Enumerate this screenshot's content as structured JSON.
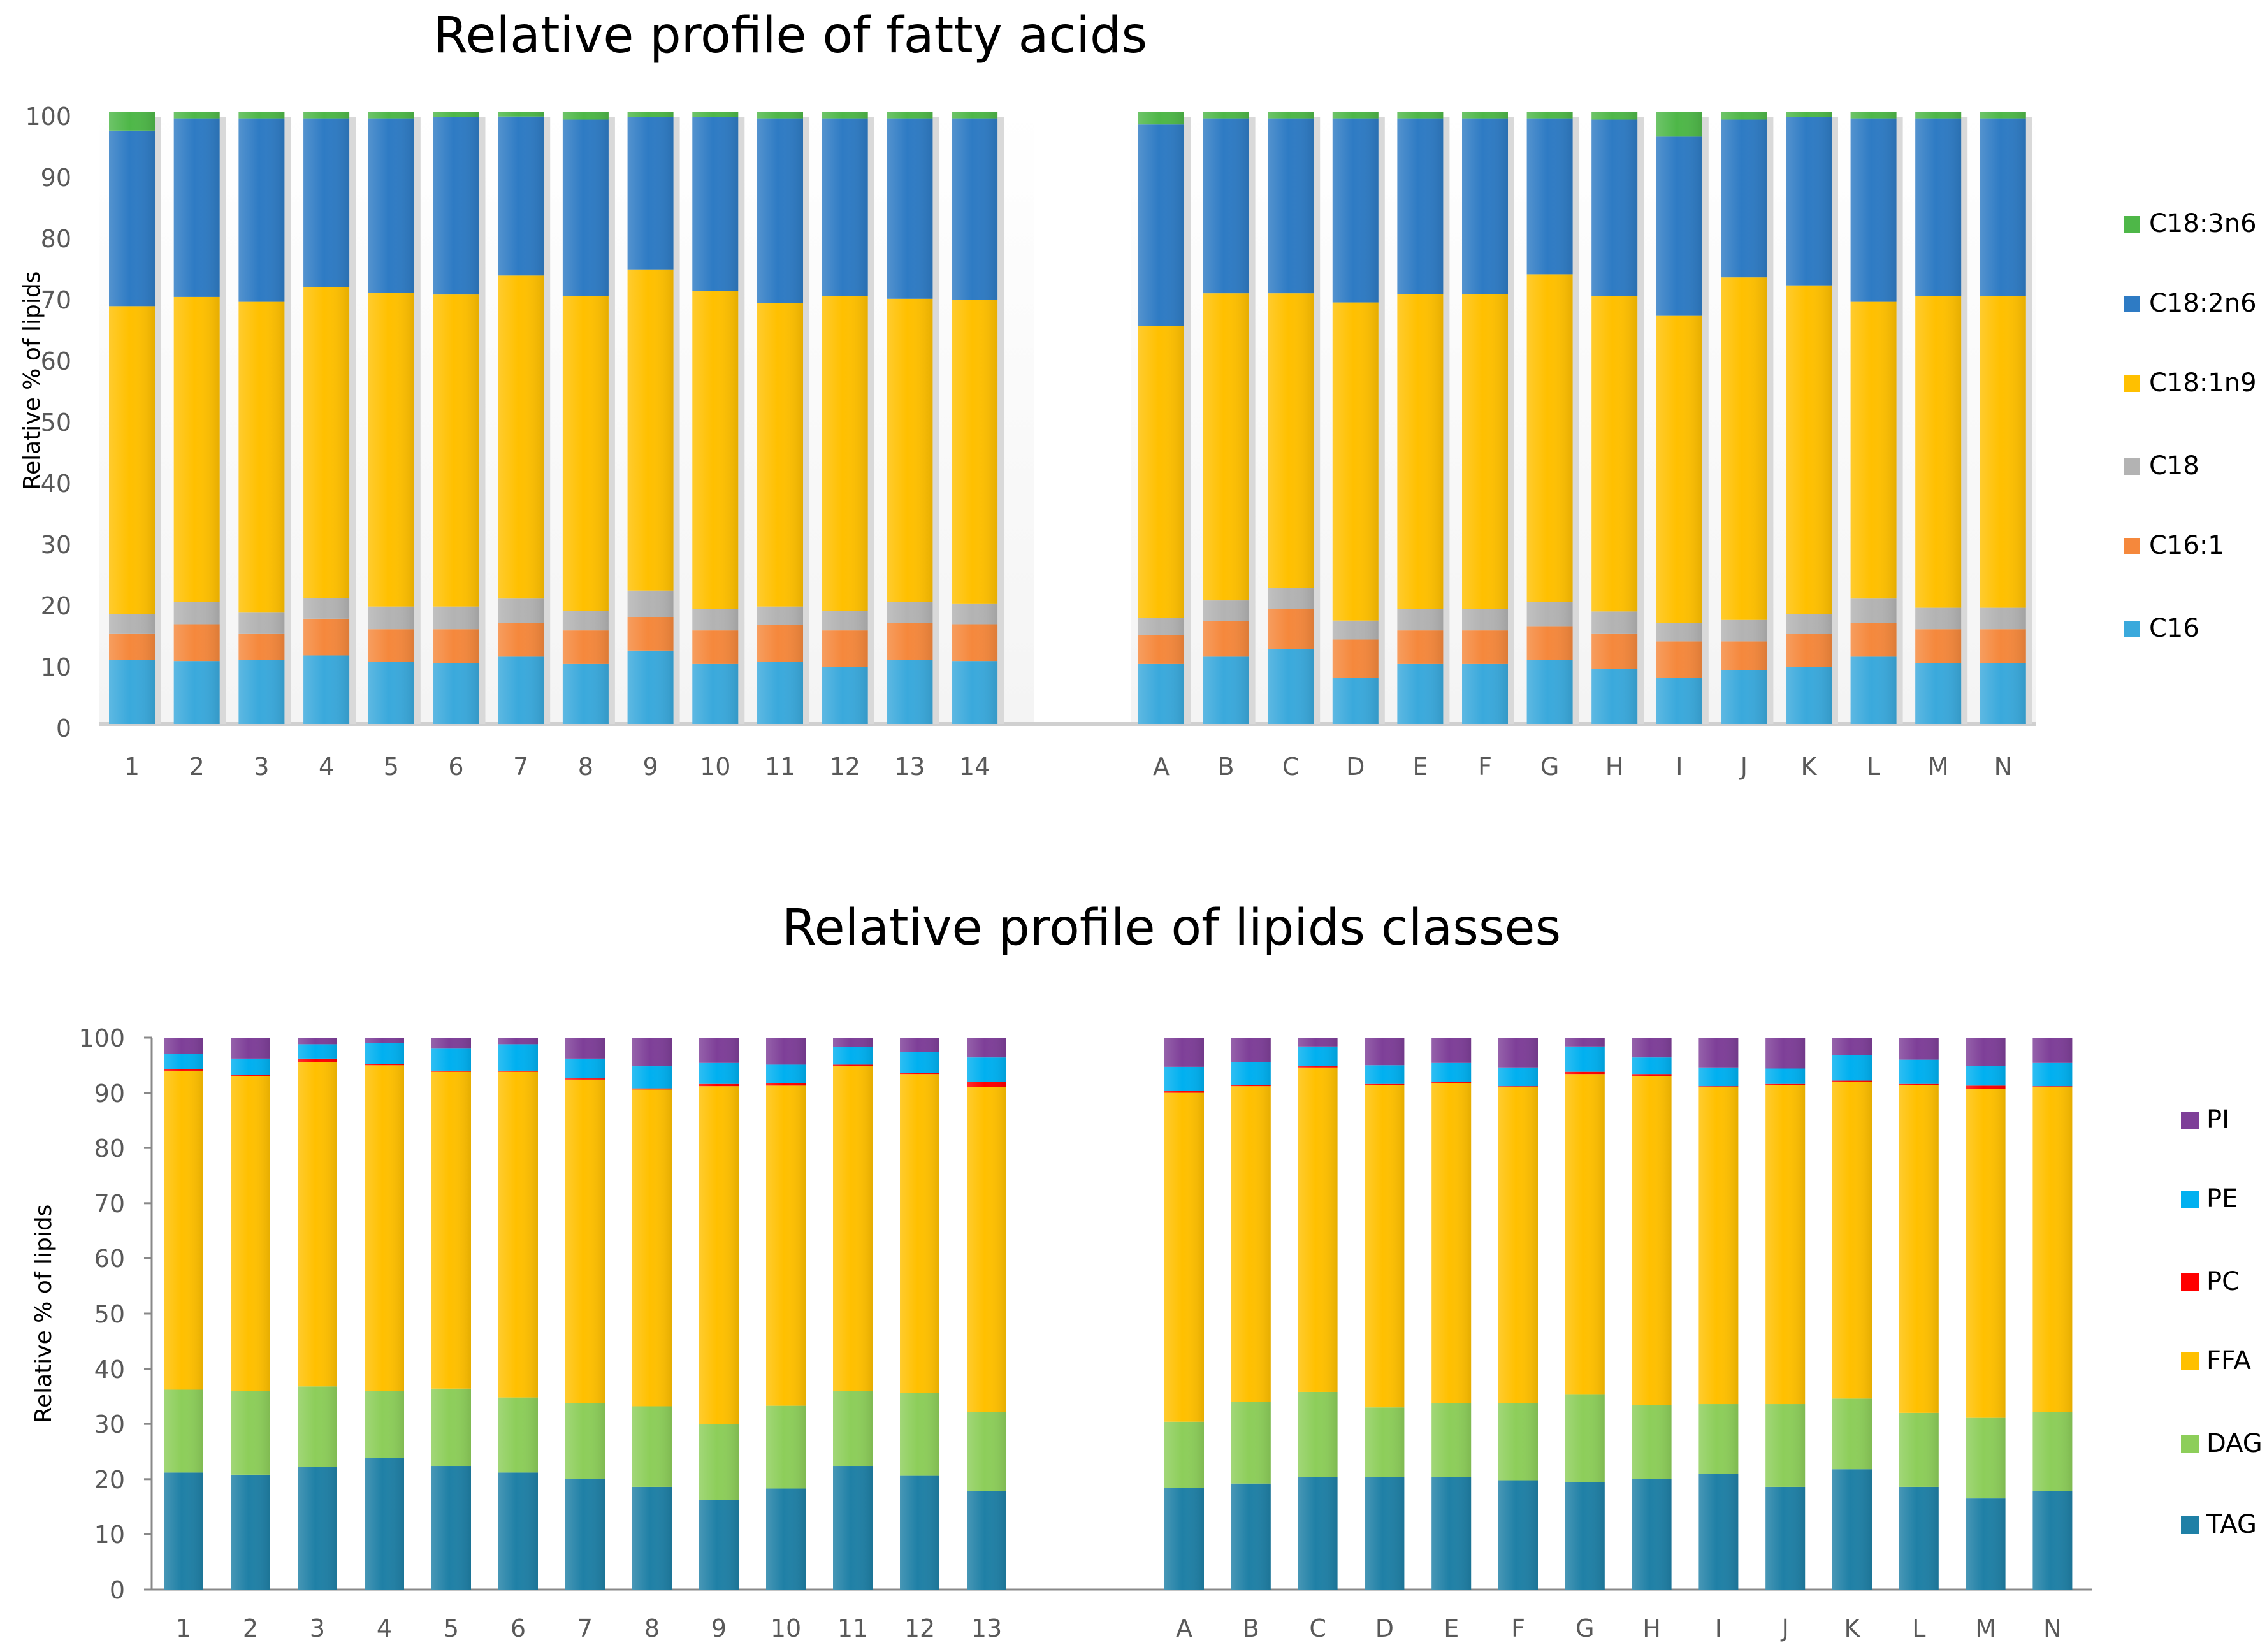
{
  "chart_data": [
    {
      "type": "bar",
      "stacked": true,
      "title": "Relative profile of fatty acids",
      "xlabel": "",
      "ylabel": "Relative % of lipids",
      "ylim": [
        0,
        100
      ],
      "yticks": [
        0,
        10,
        20,
        30,
        40,
        50,
        60,
        70,
        80,
        90,
        100
      ],
      "legend_position": "right",
      "groups": [
        [
          "1",
          "2",
          "3",
          "4",
          "5",
          "6",
          "7",
          "8",
          "9",
          "10",
          "11",
          "12",
          "13",
          "14"
        ],
        [
          "A",
          "B",
          "C",
          "D",
          "E",
          "F",
          "G",
          "H",
          "I",
          "J",
          "K",
          "L",
          "M",
          "N"
        ]
      ],
      "categories": [
        "1",
        "2",
        "3",
        "4",
        "5",
        "6",
        "7",
        "8",
        "9",
        "10",
        "11",
        "12",
        "13",
        "14",
        "A",
        "B",
        "C",
        "D",
        "E",
        "F",
        "G",
        "H",
        "I",
        "J",
        "K",
        "L",
        "M",
        "N"
      ],
      "series": [
        {
          "name": "C16",
          "color": "#3AA9DC",
          "values": [
            10.5,
            10.3,
            10.5,
            11.2,
            10.2,
            10.0,
            11.0,
            9.8,
            12.0,
            9.8,
            10.2,
            9.3,
            10.5,
            10.3,
            9.8,
            11.0,
            12.2,
            7.5,
            9.8,
            9.8,
            10.5,
            9.0,
            7.5,
            8.8,
            9.3,
            11.0,
            10.0,
            10.0
          ]
        },
        {
          "name": "C16:1",
          "color": "#F5883C",
          "values": [
            4.3,
            6.0,
            4.3,
            6.0,
            5.3,
            5.5,
            5.5,
            5.5,
            5.5,
            5.5,
            6.0,
            6.0,
            6.0,
            6.0,
            4.7,
            5.8,
            6.6,
            6.3,
            5.5,
            5.5,
            5.5,
            5.8,
            6.0,
            4.7,
            5.4,
            5.5,
            5.5,
            5.5
          ]
        },
        {
          "name": "C18",
          "color": "#B3B3B3",
          "values": [
            3.2,
            3.7,
            3.4,
            3.4,
            3.7,
            3.7,
            4.0,
            3.2,
            4.3,
            3.5,
            3.0,
            3.2,
            3.4,
            3.4,
            2.8,
            3.4,
            3.4,
            3.1,
            3.5,
            3.5,
            4.0,
            3.6,
            3.0,
            3.5,
            3.3,
            4.0,
            3.5,
            3.5
          ]
        },
        {
          "name": "C18:1n9",
          "color": "#FFC000",
          "values": [
            50.3,
            49.8,
            50.8,
            50.8,
            51.3,
            51.0,
            52.8,
            51.5,
            52.5,
            52.0,
            49.6,
            51.5,
            49.6,
            49.6,
            47.7,
            50.2,
            48.2,
            52.0,
            51.5,
            51.5,
            53.5,
            51.6,
            50.2,
            56.0,
            53.7,
            48.5,
            51.0,
            51.0
          ]
        },
        {
          "name": "C18:2n6",
          "color": "#2E7BC4",
          "values": [
            28.7,
            29.2,
            30.0,
            27.6,
            28.5,
            29.0,
            26.0,
            28.8,
            24.9,
            28.4,
            30.2,
            29.0,
            29.5,
            29.7,
            33.0,
            28.6,
            28.6,
            30.1,
            28.7,
            28.7,
            25.5,
            28.8,
            29.3,
            25.8,
            27.5,
            30.0,
            29.0,
            29.0
          ]
        },
        {
          "name": "C18:3n6",
          "color": "#4EB748",
          "values": [
            3.0,
            1.0,
            1.0,
            1.0,
            1.0,
            0.8,
            0.7,
            1.2,
            0.8,
            0.8,
            1.0,
            1.0,
            1.0,
            1.0,
            2.0,
            1.0,
            1.0,
            1.0,
            1.0,
            1.0,
            1.0,
            1.2,
            4.0,
            1.2,
            0.8,
            1.0,
            1.0,
            1.0
          ]
        }
      ]
    },
    {
      "type": "bar",
      "stacked": true,
      "title": "Relative profile of lipids classes",
      "xlabel": "",
      "ylabel": "Relative % of lipids",
      "ylim": [
        0,
        100
      ],
      "yticks": [
        0,
        10,
        20,
        30,
        40,
        50,
        60,
        70,
        80,
        90,
        100
      ],
      "legend_position": "right",
      "groups": [
        [
          "1",
          "2",
          "3",
          "4",
          "5",
          "6",
          "7",
          "8",
          "9",
          "10",
          "11",
          "12",
          "13"
        ],
        [
          "A",
          "B",
          "C",
          "D",
          "E",
          "F",
          "G",
          "H",
          "I",
          "J",
          "K",
          "L",
          "M",
          "N"
        ]
      ],
      "categories": [
        "1",
        "2",
        "3",
        "4",
        "5",
        "6",
        "7",
        "8",
        "9",
        "10",
        "11",
        "12",
        "13",
        "A",
        "B",
        "C",
        "D",
        "E",
        "F",
        "G",
        "H",
        "I",
        "J",
        "K",
        "L",
        "M",
        "N"
      ],
      "series": [
        {
          "name": "TAG",
          "color": "#1F80A6",
          "values": [
            21.2,
            20.8,
            22.2,
            23.8,
            22.4,
            21.2,
            20.0,
            18.6,
            16.2,
            18.3,
            22.4,
            20.6,
            17.8,
            18.4,
            19.2,
            20.4,
            20.4,
            20.4,
            19.8,
            19.4,
            20.0,
            21.0,
            18.6,
            21.8,
            18.6,
            16.5,
            17.8
          ]
        },
        {
          "name": "DAG",
          "color": "#8DCE5A",
          "values": [
            15.0,
            15.2,
            14.6,
            12.2,
            14.0,
            13.6,
            13.8,
            14.6,
            13.8,
            15.0,
            13.6,
            15.0,
            14.4,
            12.0,
            14.8,
            15.4,
            12.6,
            13.4,
            14.0,
            16.0,
            13.4,
            12.6,
            15.0,
            12.8,
            13.4,
            14.6,
            14.4
          ]
        },
        {
          "name": "FFA",
          "color": "#FFC000",
          "values": [
            57.8,
            57.0,
            58.8,
            59.0,
            57.4,
            59.0,
            58.6,
            57.4,
            61.2,
            58.0,
            58.8,
            57.8,
            58.8,
            59.6,
            57.2,
            58.8,
            58.4,
            58.0,
            57.2,
            58.0,
            59.6,
            57.4,
            57.8,
            57.4,
            59.4,
            59.6,
            58.8
          ]
        },
        {
          "name": "PC",
          "color": "#FF0000",
          "values": [
            0.3,
            0.2,
            0.6,
            0.2,
            0.2,
            0.2,
            0.2,
            0.2,
            0.4,
            0.4,
            0.3,
            0.2,
            1.0,
            0.3,
            0.2,
            0.2,
            0.2,
            0.2,
            0.2,
            0.4,
            0.4,
            0.2,
            0.2,
            0.2,
            0.2,
            0.6,
            0.2
          ]
        },
        {
          "name": "PE",
          "color": "#00B0F0",
          "values": [
            2.8,
            3.0,
            2.6,
            3.8,
            4.0,
            4.8,
            3.6,
            4.0,
            3.8,
            3.4,
            3.2,
            3.8,
            4.4,
            4.4,
            4.2,
            3.6,
            3.4,
            3.4,
            3.4,
            4.6,
            3.0,
            3.4,
            2.8,
            4.6,
            4.4,
            3.6,
            4.2
          ]
        },
        {
          "name": "PI",
          "color": "#7E3F98",
          "values": [
            2.9,
            3.8,
            1.2,
            1.0,
            2.0,
            1.2,
            3.8,
            5.2,
            4.6,
            4.9,
            1.7,
            2.6,
            3.6,
            5.3,
            4.4,
            1.6,
            5.0,
            4.6,
            5.4,
            1.6,
            3.6,
            5.4,
            5.6,
            3.2,
            4.0,
            5.1,
            4.6
          ]
        }
      ]
    }
  ]
}
